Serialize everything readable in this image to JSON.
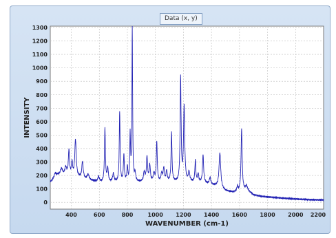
{
  "window": {
    "title": "Data (x, y)"
  },
  "colors": {
    "line": "#2323b4",
    "plot_bg": "#ffffff",
    "grid": "#bdbdbd",
    "frame_bg": "#c6d9ef"
  },
  "chart_data": {
    "type": "line",
    "title": "Data (x, y)",
    "xlabel": "WAVENUMBER (cm-1)",
    "ylabel": "INTENSITY",
    "xlim": [
      250,
      2200
    ],
    "ylim": [
      -50,
      1310
    ],
    "xticks": [
      400,
      600,
      800,
      1000,
      1200,
      1400,
      1600,
      1800,
      2000,
      2200
    ],
    "yticks": [
      0,
      100,
      200,
      300,
      400,
      500,
      600,
      700,
      800,
      900,
      1000,
      1100,
      1200,
      1300
    ],
    "grid": true,
    "legend": "none",
    "series": [
      {
        "baseline": [
          [
            250,
            150
          ],
          [
            300,
            200
          ],
          [
            350,
            195
          ],
          [
            400,
            190
          ],
          [
            450,
            185
          ],
          [
            500,
            170
          ],
          [
            550,
            160
          ],
          [
            600,
            150
          ],
          [
            650,
            150
          ],
          [
            700,
            150
          ],
          [
            750,
            150
          ],
          [
            800,
            150
          ],
          [
            850,
            150
          ],
          [
            900,
            150
          ],
          [
            950,
            150
          ],
          [
            1000,
            150
          ],
          [
            1050,
            150
          ],
          [
            1100,
            150
          ],
          [
            1150,
            150
          ],
          [
            1200,
            150
          ],
          [
            1250,
            150
          ],
          [
            1300,
            148
          ],
          [
            1350,
            140
          ],
          [
            1400,
            130
          ],
          [
            1450,
            115
          ],
          [
            1500,
            85
          ],
          [
            1550,
            75
          ],
          [
            1600,
            75
          ],
          [
            1650,
            90
          ],
          [
            1680,
            70
          ],
          [
            1700,
            55
          ],
          [
            1750,
            45
          ],
          [
            1800,
            40
          ],
          [
            1900,
            32
          ],
          [
            2000,
            25
          ],
          [
            2100,
            20
          ],
          [
            2200,
            18
          ]
        ],
        "peaks": [
          {
            "x": 285,
            "h": 30,
            "w": 8
          },
          {
            "x": 330,
            "h": 50,
            "w": 10
          },
          {
            "x": 360,
            "h": 60,
            "w": 8
          },
          {
            "x": 383,
            "h": 190,
            "w": 5
          },
          {
            "x": 405,
            "h": 100,
            "w": 5
          },
          {
            "x": 430,
            "h": 275,
            "w": 6
          },
          {
            "x": 480,
            "h": 125,
            "w": 6
          },
          {
            "x": 520,
            "h": 40,
            "w": 8
          },
          {
            "x": 595,
            "h": 40,
            "w": 6
          },
          {
            "x": 640,
            "h": 400,
            "w": 4
          },
          {
            "x": 660,
            "h": 100,
            "w": 5
          },
          {
            "x": 700,
            "h": 60,
            "w": 6
          },
          {
            "x": 745,
            "h": 525,
            "w": 3.5
          },
          {
            "x": 775,
            "h": 200,
            "w": 4
          },
          {
            "x": 800,
            "h": 110,
            "w": 4
          },
          {
            "x": 820,
            "h": 340,
            "w": 3
          },
          {
            "x": 835,
            "h": 1145,
            "w": 3
          },
          {
            "x": 855,
            "h": 60,
            "w": 5
          },
          {
            "x": 920,
            "h": 70,
            "w": 6
          },
          {
            "x": 940,
            "h": 185,
            "w": 5
          },
          {
            "x": 960,
            "h": 120,
            "w": 5
          },
          {
            "x": 990,
            "h": 60,
            "w": 6
          },
          {
            "x": 1010,
            "h": 300,
            "w": 4
          },
          {
            "x": 1045,
            "h": 60,
            "w": 6
          },
          {
            "x": 1060,
            "h": 100,
            "w": 5
          },
          {
            "x": 1080,
            "h": 80,
            "w": 5
          },
          {
            "x": 1115,
            "h": 370,
            "w": 4
          },
          {
            "x": 1180,
            "h": 775,
            "w": 4
          },
          {
            "x": 1205,
            "h": 560,
            "w": 5
          },
          {
            "x": 1240,
            "h": 70,
            "w": 6
          },
          {
            "x": 1285,
            "h": 160,
            "w": 4
          },
          {
            "x": 1305,
            "h": 60,
            "w": 5
          },
          {
            "x": 1340,
            "h": 210,
            "w": 5
          },
          {
            "x": 1390,
            "h": 50,
            "w": 6
          },
          {
            "x": 1460,
            "h": 255,
            "w": 7
          },
          {
            "x": 1585,
            "h": 40,
            "w": 5
          },
          {
            "x": 1615,
            "h": 460,
            "w": 5
          },
          {
            "x": 1650,
            "h": 30,
            "w": 8
          }
        ]
      }
    ]
  }
}
